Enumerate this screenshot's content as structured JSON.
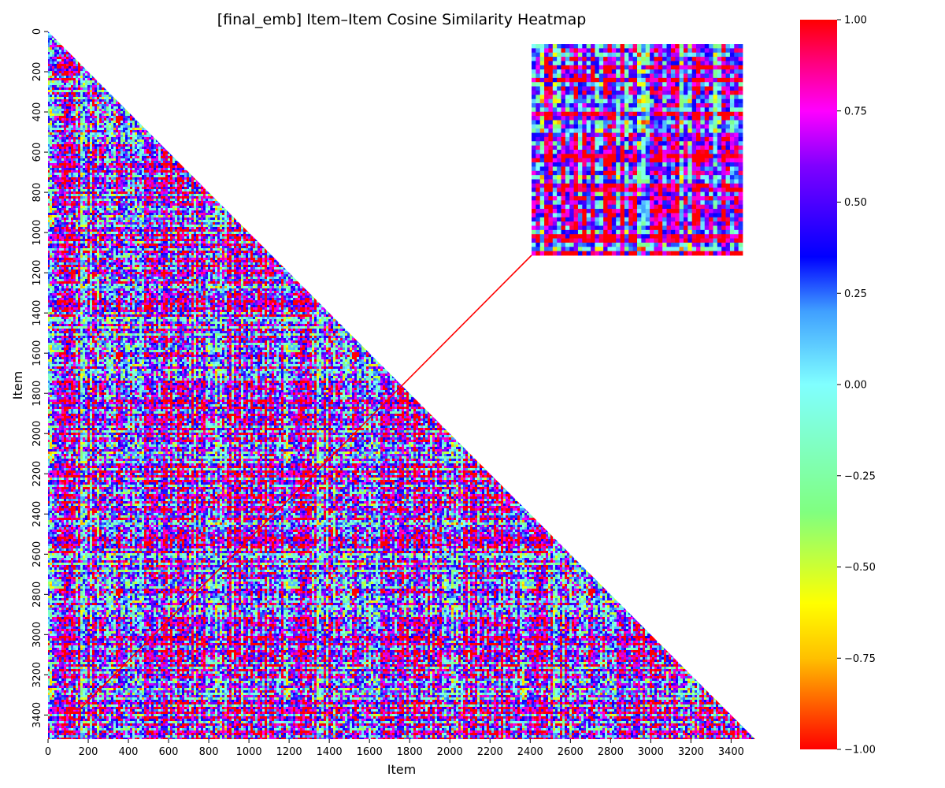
{
  "chart_data": {
    "type": "heatmap",
    "title": "[final_emb] Item–Item Cosine Similarity Heatmap",
    "xlabel": "Item",
    "ylabel": "Item",
    "n_items": 3520,
    "xlim": [
      0,
      3520
    ],
    "ylim": [
      3520,
      0
    ],
    "mask": "upper-triangle",
    "x_ticks": [
      0,
      200,
      400,
      600,
      800,
      1000,
      1200,
      1400,
      1600,
      1800,
      2000,
      2200,
      2400,
      2600,
      2800,
      3000,
      3200,
      3400
    ],
    "y_ticks": [
      0,
      200,
      400,
      600,
      800,
      1000,
      1200,
      1400,
      1600,
      1800,
      2000,
      2200,
      2400,
      2600,
      2800,
      3000,
      3200,
      3400
    ],
    "colorbar": {
      "vmin": -1.0,
      "vmax": 1.0,
      "ticks": [
        1.0,
        0.75,
        0.5,
        0.25,
        0.0,
        -0.25,
        -0.5,
        -0.75,
        -1.0
      ],
      "tick_labels": [
        "1.00",
        "0.75",
        "0.50",
        "0.25",
        "0.00",
        "−0.25",
        "−0.50",
        "−0.75",
        "−1.00"
      ],
      "colormap": "gist_rainbow",
      "stops": [
        {
          "value": -1.0,
          "color": "#ff0000"
        },
        {
          "value": -0.75,
          "color": "#ffc000"
        },
        {
          "value": -0.6,
          "color": "#ffff00"
        },
        {
          "value": -0.35,
          "color": "#80ff80"
        },
        {
          "value": 0.0,
          "color": "#80ffff"
        },
        {
          "value": 0.2,
          "color": "#40a0ff"
        },
        {
          "value": 0.35,
          "color": "#0000ff"
        },
        {
          "value": 0.6,
          "color": "#8000ff"
        },
        {
          "value": 0.75,
          "color": "#ff00ff"
        },
        {
          "value": 0.88,
          "color": "#ff0080"
        },
        {
          "value": 1.0,
          "color": "#ff0000"
        }
      ]
    },
    "zoom_region": {
      "x_range": [
        110,
        160
      ],
      "y_range": [
        3370,
        3420
      ],
      "grid_cells": 50,
      "highlight_color": "#ff0000"
    }
  }
}
